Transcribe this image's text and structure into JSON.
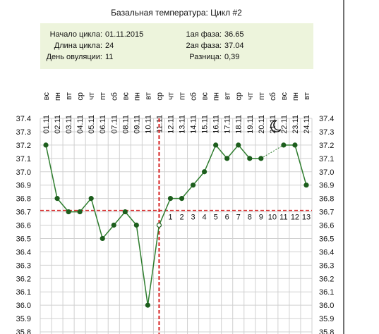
{
  "chart_data": {
    "type": "line",
    "title": "Базальная температура: Цикл #2",
    "info": {
      "start_label": "Начало цикла:",
      "start": "01.11.2015",
      "length_label": "Длина цикла:",
      "length": 24,
      "ovulation_label": "День овуляции:",
      "ovulation_day": 11,
      "phase1_label": "1ая фаза:",
      "phase1": 36.65,
      "phase2_label": "2ая фаза:",
      "phase2": 37.04,
      "diff_label": "Разница:",
      "diff": "0,39"
    },
    "weekdays": [
      "вс",
      "пн",
      "вт",
      "ср",
      "чт",
      "пт",
      "сб",
      "вс",
      "пн",
      "вт",
      "ср",
      "чт",
      "пт",
      "сб",
      "вс",
      "пн",
      "вт",
      "ср",
      "чт",
      "пт",
      "сб",
      "вс",
      "пн",
      "вт"
    ],
    "categories": [
      "01.11",
      "02.11",
      "03.11",
      "04.11",
      "05.11",
      "06.11",
      "07.11",
      "08.11",
      "09.11",
      "10.11",
      "11.11",
      "12.11",
      "13.11",
      "14.11",
      "15.11",
      "16.11",
      "17.11",
      "18.11",
      "19.11",
      "20.11",
      "21.11",
      "22.11",
      "23.11",
      "24.11"
    ],
    "series": [
      {
        "name": "temperature",
        "color": "#2e7d2e",
        "values": [
          37.2,
          36.8,
          36.7,
          36.7,
          36.8,
          36.5,
          36.6,
          36.7,
          36.6,
          36.0,
          36.6,
          36.8,
          36.8,
          36.9,
          37.0,
          37.2,
          37.1,
          37.2,
          37.1,
          37.1,
          null,
          37.2,
          37.2,
          36.9
        ]
      }
    ],
    "coverline": 36.71,
    "phase_days": [
      1,
      2,
      3,
      4,
      5,
      6,
      7,
      8,
      9,
      10,
      11,
      12,
      13
    ],
    "ylim": [
      35.8,
      37.4
    ],
    "yticks": [
      {
        "value": 35.8,
        "label": "35.8"
      },
      35.9,
      {
        "value": 36,
        "label": "36.0"
      },
      36.1,
      36.2,
      36.3,
      36.4,
      36.5,
      36.6,
      36.7,
      36.8,
      36.9,
      {
        "value": 37,
        "label": "37.0"
      },
      37.1,
      37.2,
      37.3,
      37.4
    ],
    "grid": true
  }
}
